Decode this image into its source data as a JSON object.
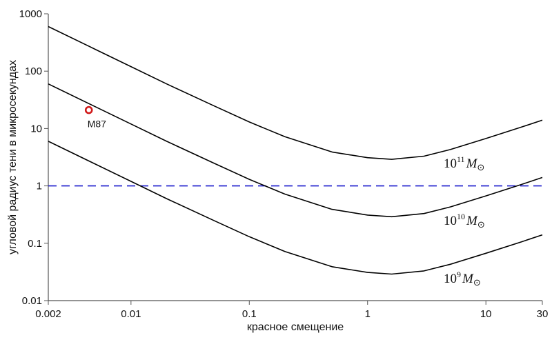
{
  "chart_data": {
    "type": "line",
    "xlabel": "красное смещение",
    "ylabel": "угловой радиус тени в микросекундах",
    "xscale": "log",
    "yscale": "log",
    "xlim": [
      0.002,
      30
    ],
    "ylim": [
      0.01,
      1000
    ],
    "x_ticks": [
      {
        "value": 0.002,
        "label": "0.002"
      },
      {
        "value": 0.01,
        "label": "0.01"
      },
      {
        "value": 0.1,
        "label": "0.1"
      },
      {
        "value": 1,
        "label": "1"
      },
      {
        "value": 10,
        "label": "10"
      },
      {
        "value": 30,
        "label": "30"
      }
    ],
    "y_ticks": [
      {
        "value": 0.01,
        "label": "0.01"
      },
      {
        "value": 0.1,
        "label": "0.1"
      },
      {
        "value": 1,
        "label": "1"
      },
      {
        "value": 10,
        "label": "10"
      },
      {
        "value": 100,
        "label": "100"
      },
      {
        "value": 1000,
        "label": "1000"
      }
    ],
    "grid": false,
    "series": [
      {
        "label_base": "10",
        "label_exp": "11",
        "label_sym": "M",
        "label_sub": "⊙",
        "color": "#000000",
        "points": [
          [
            0.002,
            600
          ],
          [
            0.005,
            240
          ],
          [
            0.01,
            120
          ],
          [
            0.02,
            60
          ],
          [
            0.05,
            25
          ],
          [
            0.1,
            13
          ],
          [
            0.2,
            7.2
          ],
          [
            0.5,
            3.9
          ],
          [
            1,
            3.1
          ],
          [
            1.6,
            2.9
          ],
          [
            3,
            3.3
          ],
          [
            5,
            4.3
          ],
          [
            10,
            6.7
          ],
          [
            20,
            10.6
          ],
          [
            30,
            14
          ]
        ]
      },
      {
        "label_base": "10",
        "label_exp": "10",
        "label_sym": "M",
        "label_sub": "⊙",
        "color": "#000000",
        "points": [
          [
            0.002,
            60
          ],
          [
            0.005,
            24
          ],
          [
            0.01,
            12
          ],
          [
            0.02,
            6
          ],
          [
            0.05,
            2.5
          ],
          [
            0.1,
            1.3
          ],
          [
            0.2,
            0.72
          ],
          [
            0.5,
            0.39
          ],
          [
            1,
            0.31
          ],
          [
            1.6,
            0.29
          ],
          [
            3,
            0.33
          ],
          [
            5,
            0.43
          ],
          [
            10,
            0.67
          ],
          [
            20,
            1.06
          ],
          [
            30,
            1.4
          ]
        ]
      },
      {
        "label_base": "10",
        "label_exp": "9",
        "label_sym": "M",
        "label_sub": "⊙",
        "color": "#000000",
        "points": [
          [
            0.002,
            6
          ],
          [
            0.005,
            2.4
          ],
          [
            0.01,
            1.2
          ],
          [
            0.02,
            0.6
          ],
          [
            0.05,
            0.25
          ],
          [
            0.1,
            0.13
          ],
          [
            0.2,
            0.072
          ],
          [
            0.5,
            0.039
          ],
          [
            1,
            0.031
          ],
          [
            1.6,
            0.029
          ],
          [
            3,
            0.033
          ],
          [
            5,
            0.043
          ],
          [
            10,
            0.067
          ],
          [
            20,
            0.106
          ],
          [
            30,
            0.14
          ]
        ]
      }
    ],
    "reference_line": {
      "y": 1,
      "style": "dashed",
      "color": "#1a1acc"
    },
    "point": {
      "label": "M87",
      "x": 0.0044,
      "y": 21,
      "color": "#d11a1a"
    }
  }
}
